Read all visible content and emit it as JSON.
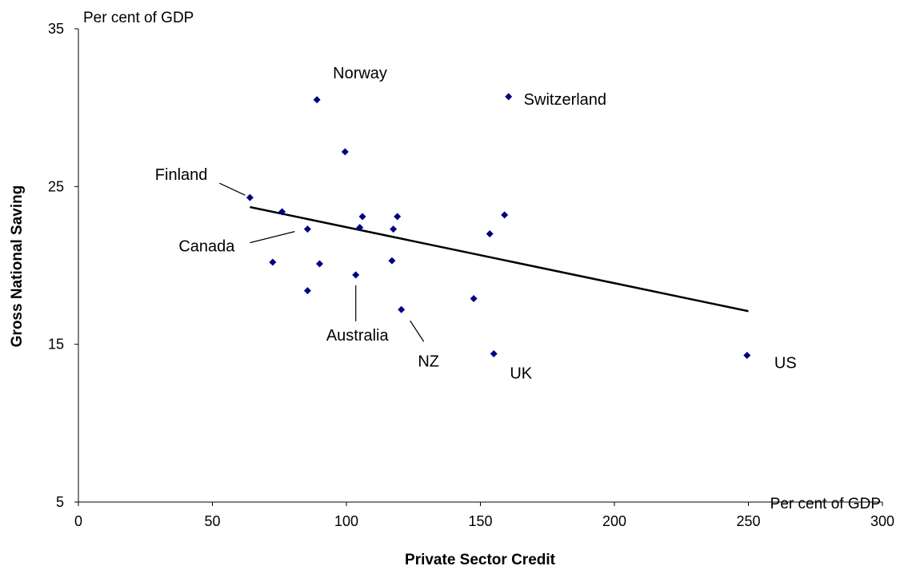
{
  "chart_data": {
    "type": "scatter",
    "xlabel": "Private Sector Credit",
    "ylabel": "Gross National Saving",
    "x_unit": "Per cent of GDP",
    "y_unit": "Per cent of GDP",
    "xlim": [
      0,
      300
    ],
    "ylim": [
      5,
      35
    ],
    "xticks": [
      0,
      50,
      100,
      150,
      200,
      250,
      300
    ],
    "yticks": [
      5,
      15,
      25,
      35
    ],
    "grid": false,
    "marker_color": "#000080",
    "points": [
      {
        "x": 64,
        "y": 24.3,
        "label": "Finland"
      },
      {
        "x": 76,
        "y": 23.4,
        "label": ""
      },
      {
        "x": 72.5,
        "y": 20.2,
        "label": ""
      },
      {
        "x": 85.5,
        "y": 22.3,
        "label": "Canada"
      },
      {
        "x": 85.5,
        "y": 18.4,
        "label": ""
      },
      {
        "x": 89,
        "y": 30.5,
        "label": "Norway"
      },
      {
        "x": 90,
        "y": 20.1,
        "label": ""
      },
      {
        "x": 99.5,
        "y": 27.2,
        "label": ""
      },
      {
        "x": 103.5,
        "y": 19.4,
        "label": "Australia"
      },
      {
        "x": 105,
        "y": 22.4,
        "label": ""
      },
      {
        "x": 106,
        "y": 23.1,
        "label": ""
      },
      {
        "x": 117,
        "y": 20.3,
        "label": ""
      },
      {
        "x": 117.5,
        "y": 22.3,
        "label": ""
      },
      {
        "x": 119,
        "y": 23.1,
        "label": ""
      },
      {
        "x": 120.5,
        "y": 17.2,
        "label": "NZ"
      },
      {
        "x": 147.5,
        "y": 17.9,
        "label": ""
      },
      {
        "x": 153.5,
        "y": 22.0,
        "label": ""
      },
      {
        "x": 155,
        "y": 14.4,
        "label": "UK"
      },
      {
        "x": 159,
        "y": 23.2,
        "label": ""
      },
      {
        "x": 160.5,
        "y": 30.7,
        "label": "Switzerland"
      },
      {
        "x": 249.5,
        "y": 14.3,
        "label": "US"
      }
    ],
    "trendline": {
      "x": [
        64,
        250
      ],
      "y": [
        23.7,
        17.1
      ],
      "color": "#000000"
    }
  }
}
